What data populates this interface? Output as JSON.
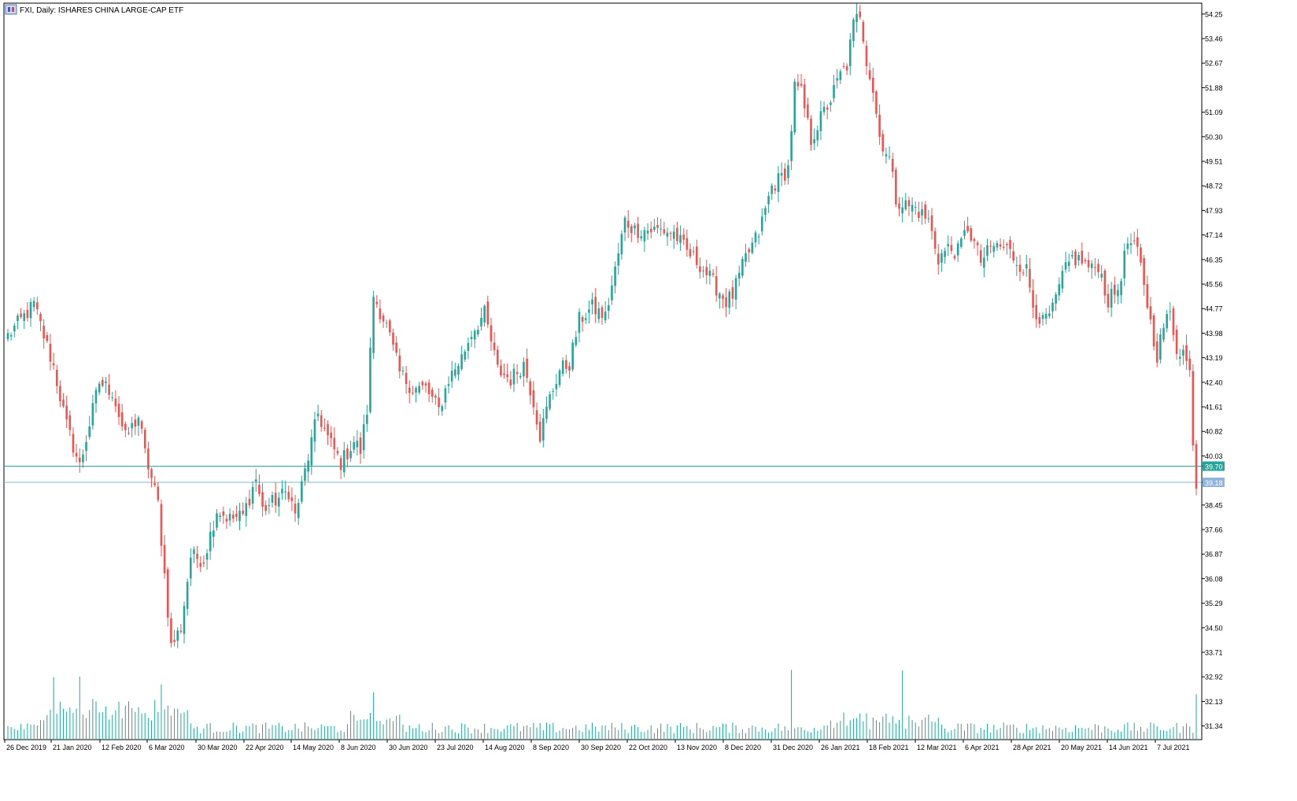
{
  "header": {
    "title": "FXI, Daily:  ISHARES CHINA LARGE-CAP ETF"
  },
  "price_markers": {
    "line1_label": "39.70",
    "line2_label": "39.18"
  },
  "chart_data": {
    "type": "candlestick",
    "title": "FXI, Daily:  ISHARES CHINA LARGE-CAP ETF",
    "y_axis_ticks": [
      "54.25",
      "53.46",
      "52.67",
      "51.88",
      "51.09",
      "50.30",
      "49.51",
      "48.72",
      "47.93",
      "47.14",
      "46.35",
      "45.56",
      "44.77",
      "43.98",
      "43.19",
      "42.40",
      "41.61",
      "40.82",
      "40.03",
      "39.70",
      "39.18",
      "38.45",
      "37.66",
      "36.87",
      "36.08",
      "35.29",
      "34.50",
      "33.71",
      "32.92",
      "32.13",
      "31.34"
    ],
    "x_axis_labels": [
      "26 Dec 2019",
      "21 Jan 2020",
      "12 Feb 2020",
      "6 Mar 2020",
      "30 Mar 2020",
      "22 Apr 2020",
      "14 May 2020",
      "8 Jun 2020",
      "30 Jun 2020",
      "23 Jul 2020",
      "14 Aug 2020",
      "8 Sep 2020",
      "30 Sep 2020",
      "22 Oct 2020",
      "13 Nov 2020",
      "8 Dec 2020",
      "31 Dec 2020",
      "26 Jan 2021",
      "18 Feb 2021",
      "12 Mar 2021",
      "6 Apr 2021",
      "28 Apr 2021",
      "20 May 2021",
      "14 Jun 2021",
      "7 Jul 2021"
    ],
    "ylim": [
      30.9,
      54.6
    ],
    "horizontal_lines": [
      39.7,
      39.18
    ],
    "up_color": "#26a69a",
    "down_color": "#ef5350",
    "close_anchors": [
      [
        0,
        43.9
      ],
      [
        8,
        44.9
      ],
      [
        14,
        42.9
      ],
      [
        18,
        41.0
      ],
      [
        22,
        39.7
      ],
      [
        28,
        42.4
      ],
      [
        32,
        42.1
      ],
      [
        36,
        40.6
      ],
      [
        40,
        41.3
      ],
      [
        42,
        40.1
      ],
      [
        46,
        38.5
      ],
      [
        48,
        36.2
      ],
      [
        50,
        33.9
      ],
      [
        53,
        34.5
      ],
      [
        56,
        36.8
      ],
      [
        60,
        36.7
      ],
      [
        64,
        38.3
      ],
      [
        68,
        38.0
      ],
      [
        72,
        38.1
      ],
      [
        76,
        39.3
      ],
      [
        78,
        38.3
      ],
      [
        82,
        38.6
      ],
      [
        86,
        38.9
      ],
      [
        88,
        38.1
      ],
      [
        92,
        40.0
      ],
      [
        95,
        41.4
      ],
      [
        98,
        40.6
      ],
      [
        102,
        39.8
      ],
      [
        106,
        40.5
      ],
      [
        108,
        40.2
      ],
      [
        110,
        41.5
      ],
      [
        112,
        45.2
      ],
      [
        116,
        44.2
      ],
      [
        120,
        42.7
      ],
      [
        124,
        42.2
      ],
      [
        128,
        42.2
      ],
      [
        132,
        41.5
      ],
      [
        135,
        42.5
      ],
      [
        139,
        43.2
      ],
      [
        142,
        44.0
      ],
      [
        146,
        44.6
      ],
      [
        150,
        42.8
      ],
      [
        154,
        42.5
      ],
      [
        158,
        43.0
      ],
      [
        161,
        41.8
      ],
      [
        163,
        40.7
      ],
      [
        166,
        41.9
      ],
      [
        169,
        42.8
      ],
      [
        172,
        43.0
      ],
      [
        175,
        44.4
      ],
      [
        179,
        44.8
      ],
      [
        183,
        44.5
      ],
      [
        186,
        46.0
      ],
      [
        189,
        47.6
      ],
      [
        192,
        47.3
      ],
      [
        196,
        47.3
      ],
      [
        200,
        47.3
      ],
      [
        204,
        47.2
      ],
      [
        208,
        46.6
      ],
      [
        212,
        46.2
      ],
      [
        216,
        45.6
      ],
      [
        220,
        45.0
      ],
      [
        222,
        45.2
      ],
      [
        226,
        46.4
      ],
      [
        230,
        47.2
      ],
      [
        234,
        48.7
      ],
      [
        237,
        49.0
      ],
      [
        239,
        49.3
      ],
      [
        241,
        51.9
      ],
      [
        243,
        51.7
      ],
      [
        246,
        50.2
      ],
      [
        249,
        50.9
      ],
      [
        252,
        51.5
      ],
      [
        255,
        52.3
      ],
      [
        257,
        52.6
      ],
      [
        259,
        53.9
      ],
      [
        261,
        54.3
      ],
      [
        263,
        52.8
      ],
      [
        265,
        51.8
      ],
      [
        267,
        50.3
      ],
      [
        270,
        49.6
      ],
      [
        272,
        48.3
      ],
      [
        275,
        48.1
      ],
      [
        278,
        48.0
      ],
      [
        282,
        47.6
      ],
      [
        285,
        46.4
      ],
      [
        288,
        46.7
      ],
      [
        291,
        46.6
      ],
      [
        294,
        47.4
      ],
      [
        298,
        46.3
      ],
      [
        302,
        46.8
      ],
      [
        306,
        46.7
      ],
      [
        309,
        46.3
      ],
      [
        312,
        46.0
      ],
      [
        314,
        44.9
      ],
      [
        317,
        44.3
      ],
      [
        320,
        44.7
      ],
      [
        323,
        45.8
      ],
      [
        326,
        46.4
      ],
      [
        329,
        46.3
      ],
      [
        332,
        46.0
      ],
      [
        334,
        46.2
      ],
      [
        337,
        45.0
      ],
      [
        340,
        45.4
      ],
      [
        343,
        46.9
      ],
      [
        346,
        46.6
      ],
      [
        348,
        45.6
      ],
      [
        350,
        44.3
      ],
      [
        352,
        43.3
      ],
      [
        354,
        44.2
      ],
      [
        356,
        44.6
      ],
      [
        358,
        43.5
      ],
      [
        360,
        43.4
      ],
      [
        362,
        42.7
      ],
      [
        363,
        40.6
      ],
      [
        364,
        39.1
      ]
    ],
    "volume_scale": "relative, no labels"
  }
}
